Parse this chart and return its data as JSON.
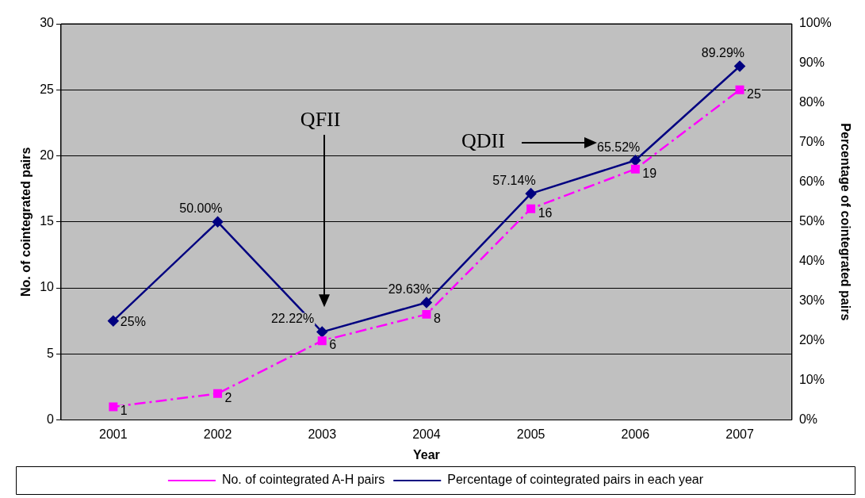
{
  "chart_data": {
    "type": "line",
    "xlabel": "Year",
    "ylabel": "No. of cointegrated pairs",
    "y2label": "Percentage of cointegrated pairs",
    "categories": [
      "2001",
      "2002",
      "2003",
      "2004",
      "2005",
      "2006",
      "2007"
    ],
    "series": [
      {
        "name": "No. of cointegrated A-H pairs",
        "color": "#ff00ff",
        "marker": "square",
        "line_style": "dashed",
        "values": [
          1,
          2,
          6,
          8,
          16,
          19,
          25
        ],
        "value_labels": [
          "1",
          "2",
          "6",
          "8",
          "16",
          "19",
          "25"
        ]
      },
      {
        "name": "Percentage of cointegrated pairs in each year",
        "color": "#000080",
        "marker": "diamond",
        "line_style": "solid",
        "axis": "y2",
        "values": [
          25,
          50,
          22.22,
          29.63,
          57.14,
          65.52,
          89.29
        ],
        "value_labels": [
          "25%",
          "50.00%",
          "22.22%",
          "29.63%",
          "57.14%",
          "65.52%",
          "89.29%"
        ]
      }
    ],
    "ylim": [
      0,
      30
    ],
    "yticks": [
      0,
      5,
      10,
      15,
      20,
      25,
      30
    ],
    "y2lim": [
      0,
      100
    ],
    "y2ticks": [
      {
        "value": 0,
        "label": "0%"
      },
      {
        "value": 10,
        "label": "10%"
      },
      {
        "value": 20,
        "label": "20%"
      },
      {
        "value": 30,
        "label": "30%"
      },
      {
        "value": 40,
        "label": "40%"
      },
      {
        "value": 50,
        "label": "50%"
      },
      {
        "value": 60,
        "label": "60%"
      },
      {
        "value": 70,
        "label": "70%"
      },
      {
        "value": 80,
        "label": "80%"
      },
      {
        "value": 90,
        "label": "90%"
      },
      {
        "value": 100,
        "label": "100%"
      }
    ],
    "grid": "y",
    "legend": "bottom",
    "annotations": [
      "QFII",
      "QDII"
    ]
  }
}
